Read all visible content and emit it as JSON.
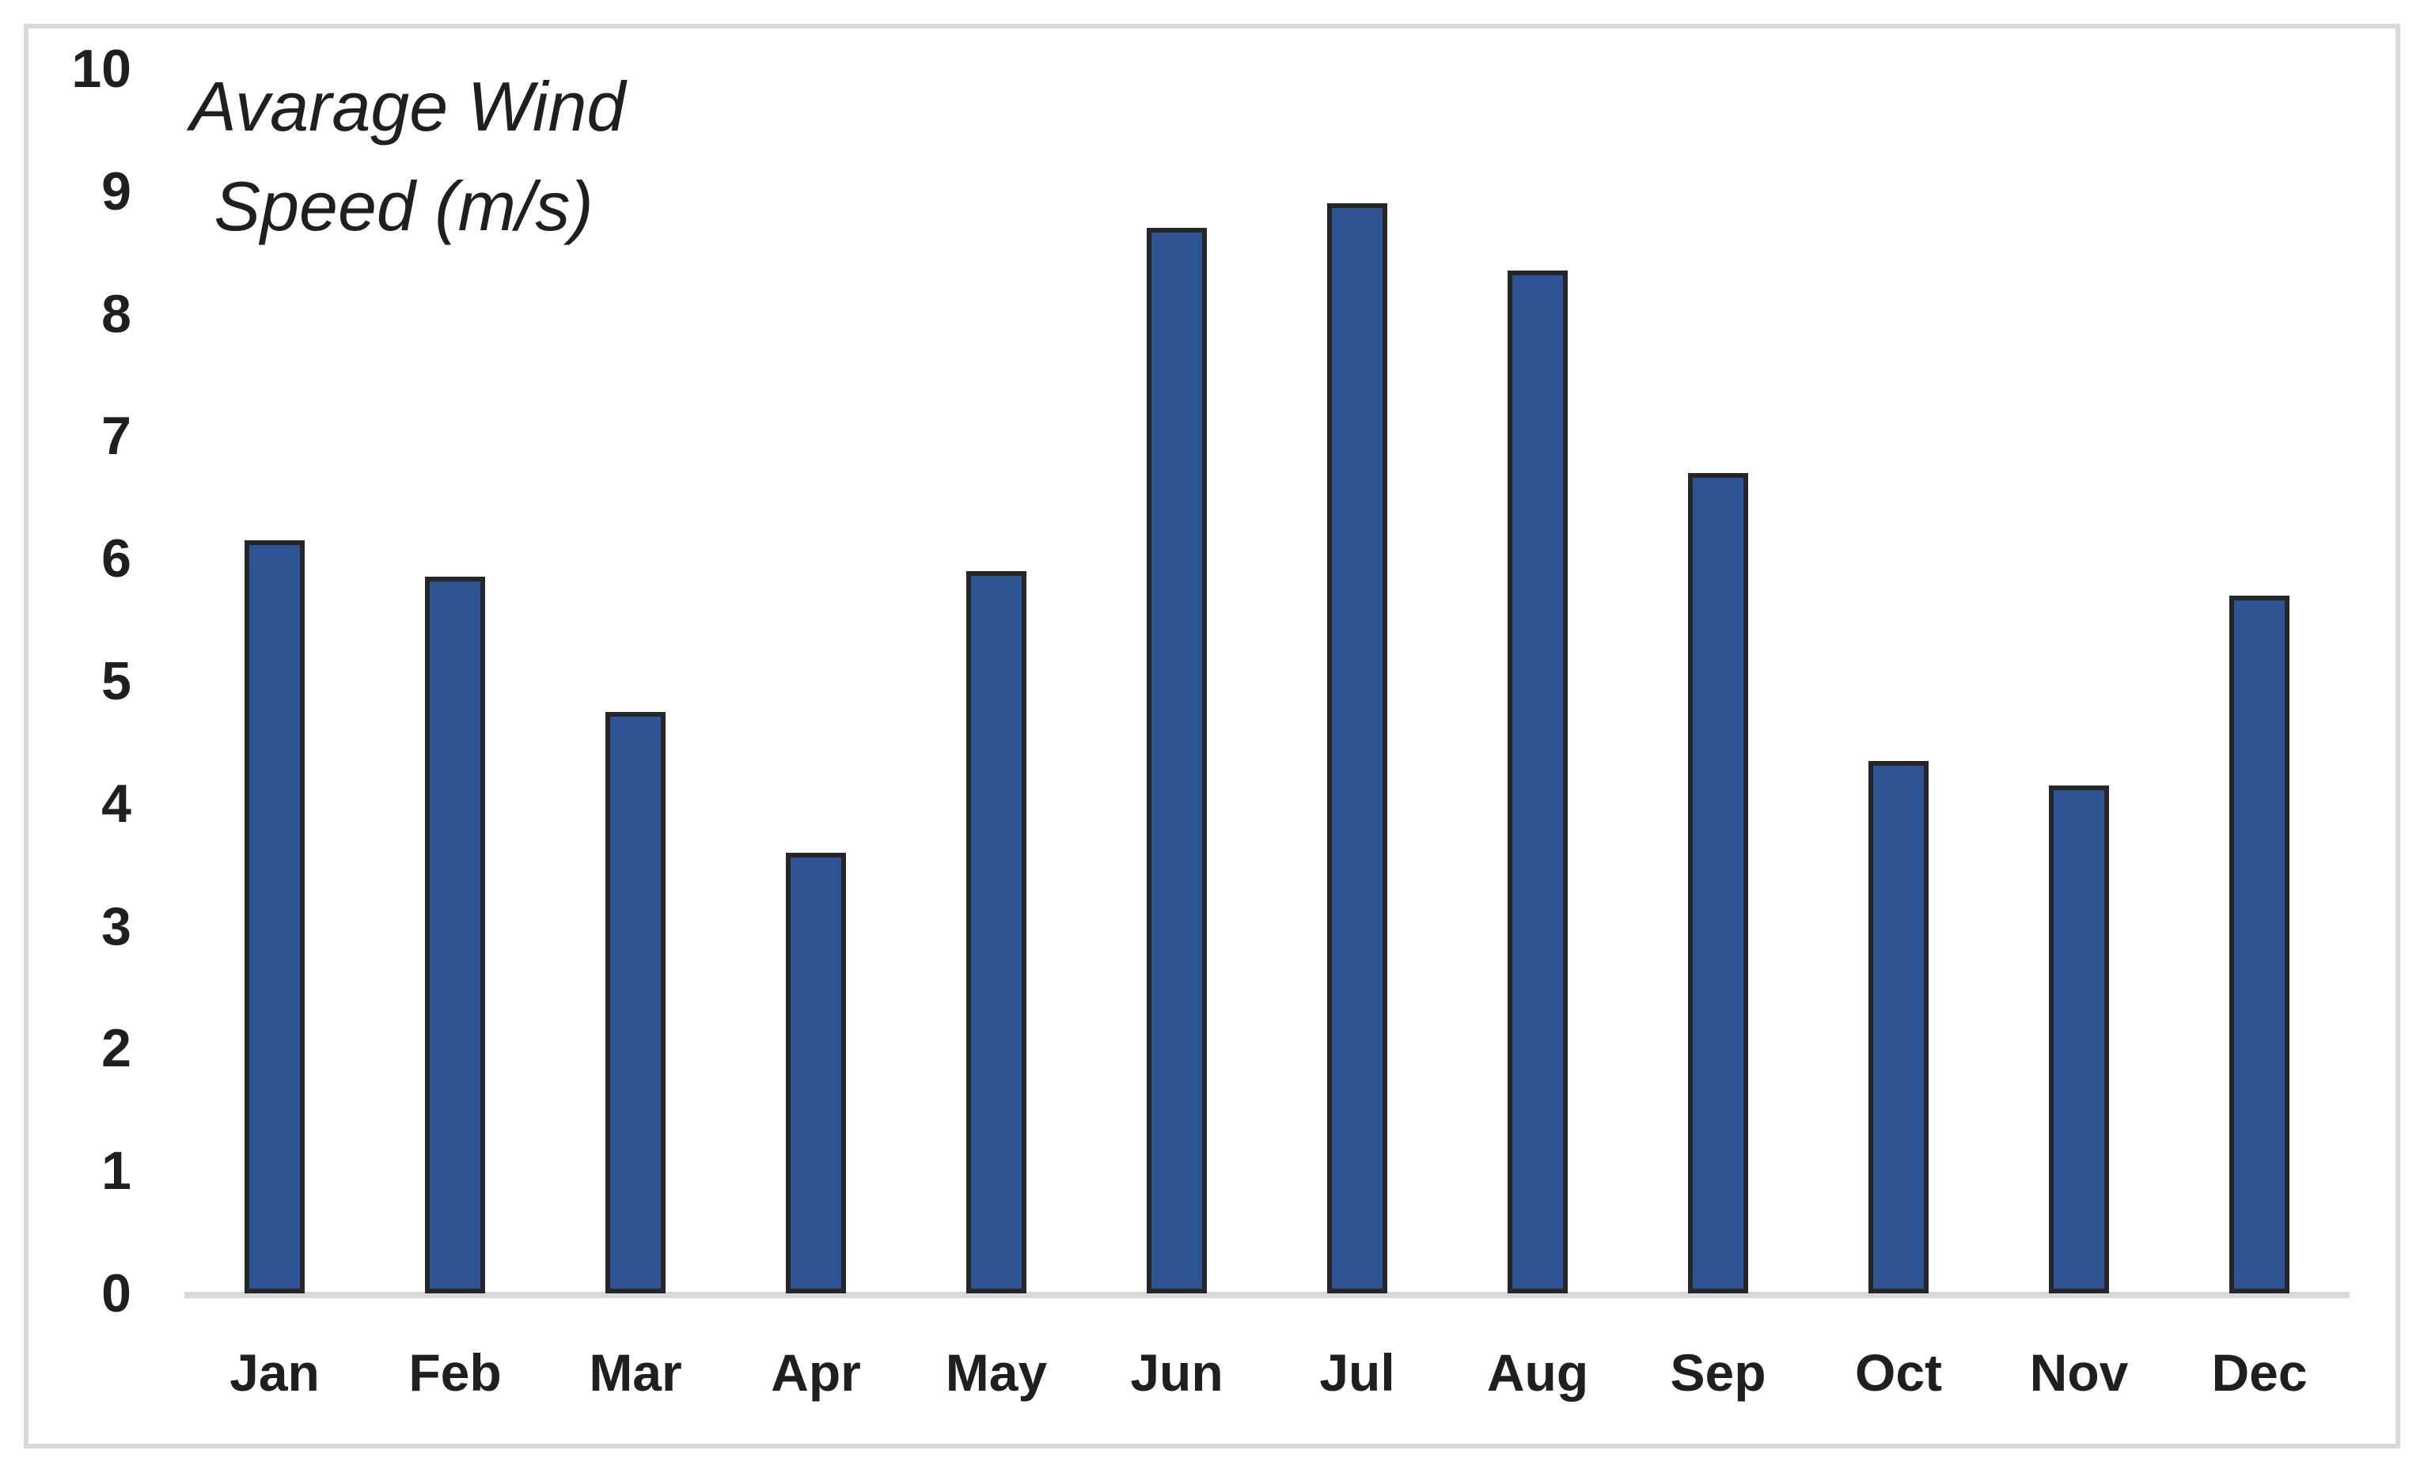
{
  "chart": {
    "title_line1": "Avarage Wind",
    "title_line2": "Speed (m/s)"
  },
  "chart_data": {
    "type": "bar",
    "title": "Avarage Wind Speed (m/s)",
    "categories": [
      "Jan",
      "Feb",
      "Mar",
      "Apr",
      "May",
      "Jun",
      "Jul",
      "Aug",
      "Sep",
      "Oct",
      "Nov",
      "Dec"
    ],
    "values": [
      6.15,
      5.85,
      4.75,
      3.6,
      5.9,
      8.7,
      8.9,
      8.35,
      6.7,
      4.35,
      4.15,
      5.7
    ],
    "xlabel": "",
    "ylabel": "Avarage Wind Speed (m/s)",
    "ylim": [
      0,
      10
    ],
    "yticks": [
      0,
      1,
      2,
      3,
      4,
      5,
      6,
      7,
      8,
      9,
      10
    ],
    "grid": false,
    "legend": false,
    "colors": {
      "bar_fill": "#2f5496",
      "bar_border": "#262626",
      "axis_line": "#d9d9d9",
      "frame_border": "#d9d9d9",
      "text": "#1f1f1f",
      "background": "#ffffff"
    }
  }
}
